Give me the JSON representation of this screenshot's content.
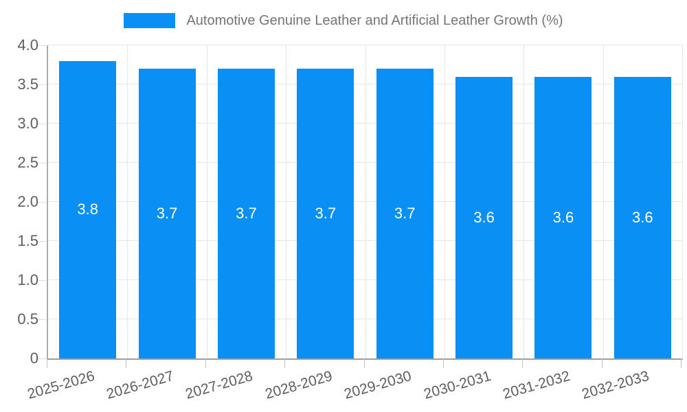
{
  "legend": {
    "label": "Automotive Genuine Leather and Artificial Leather Growth (%)"
  },
  "chart_data": {
    "type": "bar",
    "title": "Automotive Genuine Leather and Artificial Leather Growth (%)",
    "categories": [
      "2025-2026",
      "2026-2027",
      "2027-2028",
      "2028-2029",
      "2029-2030",
      "2030-2031",
      "2031-2032",
      "2032-2033"
    ],
    "values": [
      3.8,
      3.7,
      3.7,
      3.7,
      3.7,
      3.6,
      3.6,
      3.6
    ],
    "data_labels": [
      "3.8",
      "3.7",
      "3.7",
      "3.7",
      "3.7",
      "3.6",
      "3.6",
      "3.6"
    ],
    "xlabel": "",
    "ylabel": "",
    "ylim": [
      0,
      4.0
    ],
    "yticks": [
      {
        "v": 0,
        "label": "0"
      },
      {
        "v": 0.5,
        "label": "0.5"
      },
      {
        "v": 1.0,
        "label": "1.0"
      },
      {
        "v": 1.5,
        "label": "1.5"
      },
      {
        "v": 2.0,
        "label": "2.0"
      },
      {
        "v": 2.5,
        "label": "2.5"
      },
      {
        "v": 3.0,
        "label": "3.0"
      },
      {
        "v": 3.5,
        "label": "3.5"
      },
      {
        "v": 4.0,
        "label": "4.0"
      }
    ],
    "grid": true,
    "legend_position": "top",
    "bar_color": "#0a8ff5",
    "data_label_color": "#ffffff"
  }
}
